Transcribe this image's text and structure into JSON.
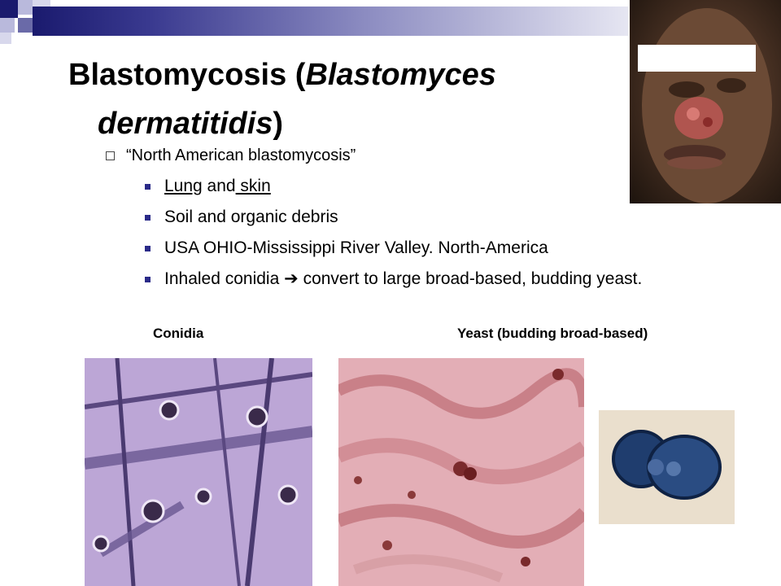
{
  "slide": {
    "title_line1": "Blastomycosis (",
    "title_italic1": "Blastomyces",
    "title_italic2": "dermatitidis",
    "title_close": ")",
    "bullet_level1": "“North American blastomycosis”",
    "bullets": [
      {
        "part1": "Lung",
        "part2": " and",
        "part3": " skin"
      },
      {
        "text": "Soil and organic debris"
      },
      {
        "text": "USA OHIO-Mississippi River Valley. North-America"
      },
      {
        "pre": "Inhaled conidia ",
        "arrow": "➔",
        "post": " convert to large broad-based, budding yeast."
      }
    ],
    "captions": {
      "conidia": "Conidia",
      "yeast": "Yeast (budding broad-based)"
    }
  },
  "colors": {
    "accent_dark": "#1a1a6e",
    "bullet": "#2a2a88"
  }
}
